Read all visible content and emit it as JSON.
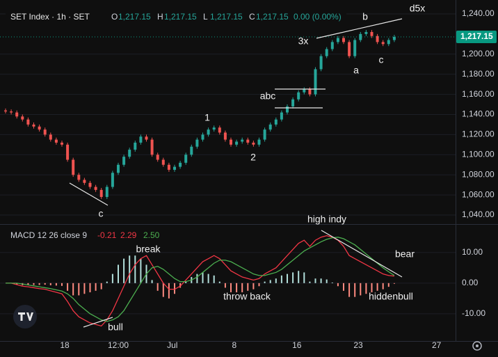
{
  "chart_data": [
    {
      "type": "candlestick",
      "title": "SET Index · 1h · SET",
      "ohlc_legend": [
        {
          "key": "O",
          "value": "1,217.15"
        },
        {
          "key": "H",
          "value": "1,217.15"
        },
        {
          "key": "L",
          "value": "1,217.15"
        },
        {
          "key": "C",
          "value": "1,217.15"
        }
      ],
      "change": "0.00 (0.00%)",
      "up_color": "#26a69a",
      "down_color": "#ef5350",
      "open": [
        1144,
        1143,
        1142,
        1138,
        1135,
        1130,
        1128,
        1125,
        1120,
        1115,
        1112,
        1110,
        1095,
        1080,
        1075,
        1072,
        1068,
        1065,
        1058,
        1068,
        1082,
        1090,
        1098,
        1105,
        1112,
        1118,
        1115,
        1100,
        1095,
        1090,
        1085,
        1088,
        1092,
        1100,
        1108,
        1115,
        1120,
        1125,
        1127,
        1122,
        1115,
        1110,
        1113,
        1115,
        1112,
        1110,
        1115,
        1125,
        1130,
        1135,
        1142,
        1148,
        1155,
        1162,
        1165,
        1160,
        1185,
        1198,
        1205,
        1212,
        1216,
        1212,
        1198,
        1214,
        1220,
        1222,
        1218,
        1212,
        1210,
        1214
      ],
      "high": [
        1146,
        1145,
        1144,
        1140,
        1137,
        1132,
        1130,
        1127,
        1122,
        1117,
        1114,
        1112,
        1097,
        1082,
        1077,
        1074,
        1070,
        1067,
        1070,
        1084,
        1092,
        1100,
        1107,
        1114,
        1120,
        1120,
        1117,
        1102,
        1097,
        1092,
        1090,
        1094,
        1102,
        1110,
        1117,
        1122,
        1127,
        1129,
        1129,
        1124,
        1117,
        1115,
        1117,
        1117,
        1114,
        1117,
        1127,
        1132,
        1137,
        1144,
        1150,
        1157,
        1164,
        1167,
        1167,
        1187,
        1200,
        1207,
        1214,
        1218,
        1218,
        1214,
        1216,
        1222,
        1224,
        1224,
        1220,
        1214,
        1216,
        1219.15
      ],
      "low": [
        1141,
        1140,
        1136,
        1133,
        1128,
        1126,
        1123,
        1118,
        1113,
        1110,
        1108,
        1093,
        1078,
        1073,
        1070,
        1066,
        1063,
        1056,
        1056,
        1066,
        1080,
        1088,
        1096,
        1103,
        1110,
        1113,
        1098,
        1093,
        1088,
        1083,
        1083,
        1086,
        1090,
        1098,
        1106,
        1113,
        1118,
        1123,
        1120,
        1113,
        1108,
        1108,
        1111,
        1110,
        1108,
        1108,
        1113,
        1123,
        1128,
        1133,
        1140,
        1146,
        1153,
        1160,
        1158,
        1158,
        1183,
        1196,
        1203,
        1210,
        1210,
        1196,
        1196,
        1212,
        1218,
        1216,
        1210,
        1208,
        1208,
        1212
      ],
      "close": [
        1143,
        1142,
        1138,
        1135,
        1130,
        1128,
        1125,
        1120,
        1115,
        1112,
        1110,
        1095,
        1080,
        1075,
        1072,
        1068,
        1065,
        1058,
        1068,
        1082,
        1090,
        1098,
        1105,
        1112,
        1118,
        1115,
        1100,
        1095,
        1090,
        1085,
        1088,
        1092,
        1100,
        1108,
        1115,
        1120,
        1125,
        1127,
        1122,
        1115,
        1110,
        1113,
        1115,
        1112,
        1110,
        1115,
        1125,
        1130,
        1135,
        1142,
        1148,
        1155,
        1162,
        1165,
        1160,
        1185,
        1198,
        1205,
        1212,
        1216,
        1212,
        1198,
        1214,
        1220,
        1222,
        1218,
        1212,
        1210,
        1214,
        1217.15
      ],
      "ylim": [
        1033.8,
        1253.8
      ],
      "yticks": [
        {
          "value": 1040,
          "label": "1,040.00"
        },
        {
          "value": 1060,
          "label": "1,060.00"
        },
        {
          "value": 1080,
          "label": "1,080.00"
        },
        {
          "value": 1100,
          "label": "1,100.00"
        },
        {
          "value": 1120,
          "label": "1,120.00"
        },
        {
          "value": 1140,
          "label": "1,140.00"
        },
        {
          "value": 1160,
          "label": "1,160.00"
        },
        {
          "value": 1180,
          "label": "1,180.00"
        },
        {
          "value": 1200,
          "label": "1,200.00"
        },
        {
          "value": 1240,
          "label": "1,240.00"
        }
      ],
      "last_price": {
        "value": 1217.15,
        "label": "1,217.15",
        "color": "#089981"
      },
      "xticks": [
        {
          "value": 10.5,
          "label": "18"
        },
        {
          "value": 20,
          "label": "12:00"
        },
        {
          "value": 29.6,
          "label": "Jul"
        },
        {
          "value": 40.6,
          "label": "8"
        },
        {
          "value": 51.7,
          "label": "16"
        },
        {
          "value": 62.6,
          "label": "23"
        },
        {
          "value": 76.5,
          "label": "27"
        }
      ],
      "annotations": [
        "d5x",
        "b",
        "3x",
        "a",
        "c",
        "abc",
        "1",
        "2",
        "c"
      ]
    },
    {
      "type": "macd",
      "title": "MACD 12 26 close 9",
      "legend_values": [
        {
          "value": -0.21,
          "label": "-0.21",
          "color": "#f23645"
        },
        {
          "value": 2.29,
          "label": "2.29",
          "color": "#f23645"
        },
        {
          "value": 2.5,
          "label": "2.50",
          "color": "#4caf50"
        }
      ],
      "series": [
        {
          "name": "MACD",
          "color": "#f23645",
          "values": [
            0,
            0,
            -0.5,
            -1,
            -1.2,
            -1.5,
            -1.8,
            -2,
            -2.5,
            -3,
            -3.5,
            -6,
            -9,
            -11,
            -12,
            -13,
            -13.5,
            -14,
            -12,
            -9,
            -5,
            -1,
            3,
            6,
            8,
            9,
            6,
            3,
            0,
            -2,
            -2,
            -1,
            1,
            3,
            5,
            7,
            8,
            9,
            8,
            6,
            4,
            3,
            2,
            1.5,
            1,
            1.5,
            3,
            4,
            5,
            7,
            9,
            11,
            13,
            14,
            12,
            14,
            15,
            15.5,
            15,
            14,
            12,
            9,
            8,
            7,
            6,
            5,
            4,
            3,
            2.5,
            2.29
          ]
        },
        {
          "name": "Signal",
          "color": "#4caf50",
          "values": [
            0,
            0,
            0,
            -0.3,
            -0.6,
            -0.9,
            -1.2,
            -1.5,
            -1.8,
            -2.2,
            -2.6,
            -3.5,
            -5,
            -7,
            -8.5,
            -10,
            -11,
            -12,
            -12.5,
            -12,
            -11,
            -9,
            -6,
            -3,
            0,
            3,
            5,
            5.5,
            4.5,
            3,
            1.5,
            0.5,
            0.5,
            1,
            2,
            3.5,
            5,
            6.5,
            7.5,
            7.5,
            7,
            6,
            5,
            4,
            3,
            2.5,
            2.5,
            3,
            3.5,
            4.5,
            6,
            7.5,
            9,
            10.5,
            11.5,
            12.5,
            13.5,
            14.3,
            14.8,
            15,
            14.5,
            13.5,
            12.5,
            11,
            9.5,
            8,
            6.5,
            5,
            3.7,
            2.5
          ]
        }
      ],
      "histogram": {
        "up_color": "#b2dfdb",
        "down_color": "#ff8a80",
        "values": [
          0,
          0,
          -0.5,
          -0.7,
          -0.6,
          -0.6,
          -0.6,
          -0.5,
          -0.7,
          -0.8,
          -0.9,
          -2.5,
          -4,
          -4,
          -3.5,
          -3,
          -2.5,
          -2,
          0.5,
          3,
          6,
          8,
          9,
          9,
          8,
          6,
          1,
          -2.5,
          -4.5,
          -5,
          -3.5,
          -1.5,
          0.5,
          2,
          3,
          3.5,
          3,
          2.5,
          0.5,
          -1.5,
          -3,
          -3,
          -3,
          -2.5,
          -2,
          -1,
          0.5,
          1,
          1.5,
          2.5,
          3,
          3.5,
          4,
          3.5,
          0.5,
          1.5,
          1.5,
          1.2,
          0.2,
          -1,
          -2.5,
          -4.5,
          -4.5,
          -4,
          -3.5,
          -3,
          -2.5,
          -2,
          -1.2,
          -0.21
        ]
      },
      "ylim": [
        -18.9,
        18.6
      ],
      "yticks": [
        {
          "value": 10,
          "label": "10.00"
        },
        {
          "value": 0,
          "label": "0.00"
        },
        {
          "value": -10,
          "label": "-10.00"
        }
      ],
      "annotations": [
        "high indy",
        "break",
        "bear",
        "throw back",
        "hiddenbull",
        "bull"
      ]
    }
  ]
}
